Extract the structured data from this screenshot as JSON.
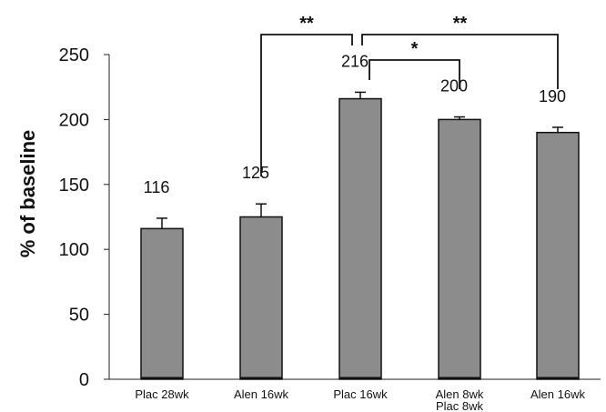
{
  "chart_data": {
    "type": "bar",
    "title": "",
    "xlabel": "",
    "ylabel": "% of baseline",
    "ylim": [
      0,
      250
    ],
    "yticks": [
      0,
      50,
      100,
      150,
      200,
      250
    ],
    "grid": false,
    "categories": [
      [
        "Plac 28wk"
      ],
      [
        "Alen 16wk"
      ],
      [
        "Plac 16wk"
      ],
      [
        "Alen 8wk",
        "Plac 8wk"
      ],
      [
        "Alen 16wk"
      ]
    ],
    "values": [
      116,
      125,
      216,
      200,
      190
    ],
    "errors": [
      8,
      10,
      5,
      2,
      4
    ],
    "data_labels": [
      "116",
      "125",
      "216",
      "200",
      "190"
    ],
    "bar_color": "#8c8c8c",
    "significance": [
      {
        "from": 1,
        "to": 2,
        "label": "**",
        "level": 2
      },
      {
        "from": 2,
        "to": 4,
        "label": "**",
        "level": 2
      },
      {
        "from": 2,
        "to": 3,
        "label": "*",
        "level": 1
      }
    ]
  }
}
